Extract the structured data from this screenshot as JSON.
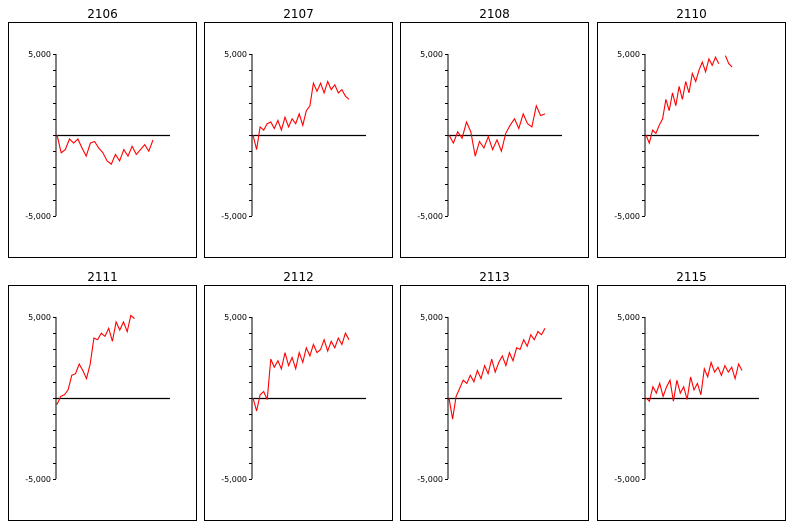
{
  "page": {
    "background": "#ffffff"
  },
  "style": {
    "line_color": "#ff0000",
    "axis_color": "#000000"
  },
  "chart_data": [
    {
      "type": "line",
      "title": "2106",
      "ylim": [
        -5000,
        5000
      ],
      "ytick_labels": [
        "5,000",
        "-5,000"
      ],
      "grid": false,
      "zero_line": true,
      "x": [
        0,
        1,
        2,
        3,
        4,
        5,
        6,
        7,
        8,
        9,
        10,
        11,
        12,
        13,
        14,
        15,
        16,
        17,
        18,
        19,
        20,
        21,
        22,
        23
      ],
      "y": [
        0,
        -1100,
        -900,
        -250,
        -500,
        -250,
        -800,
        -1300,
        -500,
        -400,
        -800,
        -1100,
        -1600,
        -1800,
        -1200,
        -1600,
        -900,
        -1300,
        -700,
        -1200,
        -900,
        -600,
        -1000,
        -300
      ]
    },
    {
      "type": "line",
      "title": "2107",
      "ylim": [
        -5000,
        5000
      ],
      "ytick_labels": [
        "5,000",
        "-5,000"
      ],
      "grid": false,
      "zero_line": true,
      "x": [
        0,
        1,
        2,
        3,
        4,
        5,
        6,
        7,
        8,
        9,
        10,
        11,
        12,
        13,
        14,
        15,
        16,
        17,
        18,
        19,
        20,
        21,
        22,
        23,
        24,
        25,
        26,
        27
      ],
      "y": [
        0,
        -900,
        500,
        300,
        700,
        800,
        400,
        900,
        300,
        1100,
        500,
        1000,
        700,
        1300,
        600,
        1500,
        1800,
        3200,
        2700,
        3200,
        2600,
        3300,
        2800,
        3100,
        2600,
        2800,
        2400,
        2200
      ]
    },
    {
      "type": "line",
      "title": "2108",
      "ylim": [
        -5000,
        5000
      ],
      "ytick_labels": [
        "5,000",
        "-5,000"
      ],
      "grid": false,
      "zero_line": true,
      "x": [
        0,
        1,
        2,
        3,
        4,
        5,
        6,
        7,
        8,
        9,
        10,
        11,
        12,
        13,
        14,
        15,
        16,
        17,
        18,
        19,
        20,
        21,
        22
      ],
      "y": [
        0,
        -500,
        200,
        -200,
        800,
        200,
        -1300,
        -400,
        -800,
        -100,
        -900,
        -300,
        -1000,
        100,
        600,
        1000,
        400,
        1300,
        700,
        500,
        1800,
        1200,
        1300
      ]
    },
    {
      "type": "line",
      "title": "2110",
      "ylim": [
        -5000,
        5000
      ],
      "ytick_labels": [
        "5,000",
        "-5,000"
      ],
      "grid": false,
      "zero_line": true,
      "x": [
        0,
        1,
        2,
        3,
        4,
        5,
        6,
        7,
        8,
        9,
        10,
        11,
        12,
        13,
        14,
        15,
        16,
        17,
        18,
        19,
        20,
        21,
        22,
        23,
        24,
        25,
        26,
        27,
        28,
        29
      ],
      "y": [
        0,
        -500,
        300,
        100,
        600,
        1000,
        2200,
        1500,
        2600,
        1800,
        3000,
        2200,
        3300,
        2600,
        3800,
        3300,
        4000,
        4500,
        3900,
        4700,
        4300,
        4800,
        4400,
        null,
        4900,
        4400,
        4200,
        null,
        null,
        null
      ]
    },
    {
      "type": "line",
      "title": "2111",
      "ylim": [
        -5000,
        5000
      ],
      "ytick_labels": [
        "5,000",
        "-5,000"
      ],
      "grid": false,
      "zero_line": true,
      "x": [
        0,
        1,
        2,
        3,
        4,
        5,
        6,
        7,
        8,
        9,
        10,
        11,
        12,
        13,
        14,
        15,
        16,
        17,
        18,
        19,
        20,
        21,
        22,
        23,
        24,
        25,
        26
      ],
      "y": [
        -400,
        100,
        200,
        500,
        1400,
        1500,
        2100,
        1700,
        1200,
        2100,
        3700,
        3600,
        4000,
        3800,
        4300,
        3500,
        4700,
        4200,
        4700,
        4100,
        5100,
        4900,
        null,
        null,
        null,
        null,
        null
      ]
    },
    {
      "type": "line",
      "title": "2112",
      "ylim": [
        -5000,
        5000
      ],
      "ytick_labels": [
        "5,000",
        "-5,000"
      ],
      "grid": false,
      "zero_line": true,
      "x": [
        0,
        1,
        2,
        3,
        4,
        5,
        6,
        7,
        8,
        9,
        10,
        11,
        12,
        13,
        14,
        15,
        16,
        17,
        18,
        19,
        20,
        21,
        22,
        23,
        24,
        25,
        26,
        27
      ],
      "y": [
        0,
        -800,
        200,
        400,
        -100,
        2400,
        1900,
        2300,
        1800,
        2800,
        2000,
        2500,
        1800,
        2800,
        2200,
        3100,
        2600,
        3300,
        2800,
        3000,
        3600,
        2900,
        3500,
        3100,
        3700,
        3300,
        4000,
        3600
      ]
    },
    {
      "type": "line",
      "title": "2113",
      "ylim": [
        -5000,
        5000
      ],
      "ytick_labels": [
        "5,000",
        "-5,000"
      ],
      "grid": false,
      "zero_line": true,
      "x": [
        0,
        1,
        2,
        3,
        4,
        5,
        6,
        7,
        8,
        9,
        10,
        11,
        12,
        13,
        14,
        15,
        16,
        17,
        18,
        19,
        20,
        21,
        22,
        23,
        24,
        25,
        26,
        27
      ],
      "y": [
        0,
        -1300,
        100,
        600,
        1100,
        900,
        1400,
        1000,
        1700,
        1200,
        2000,
        1500,
        2400,
        1600,
        2200,
        2600,
        2000,
        2800,
        2300,
        3100,
        3000,
        3600,
        3200,
        3900,
        3600,
        4100,
        3900,
        4300
      ]
    },
    {
      "type": "line",
      "title": "2115",
      "ylim": [
        -5000,
        5000
      ],
      "ytick_labels": [
        "5,000",
        "-5,000"
      ],
      "grid": false,
      "zero_line": true,
      "x": [
        0,
        1,
        2,
        3,
        4,
        5,
        6,
        7,
        8,
        9,
        10,
        11,
        12,
        13,
        14,
        15,
        16,
        17,
        18,
        19,
        20,
        21,
        22,
        23,
        24,
        25,
        26,
        27,
        28
      ],
      "y": [
        0,
        -200,
        700,
        300,
        900,
        100,
        700,
        1100,
        -200,
        1100,
        300,
        700,
        -100,
        1300,
        500,
        900,
        200,
        1800,
        1300,
        2200,
        1600,
        1900,
        1400,
        2000,
        1600,
        1900,
        1200,
        2100,
        1700
      ]
    }
  ]
}
